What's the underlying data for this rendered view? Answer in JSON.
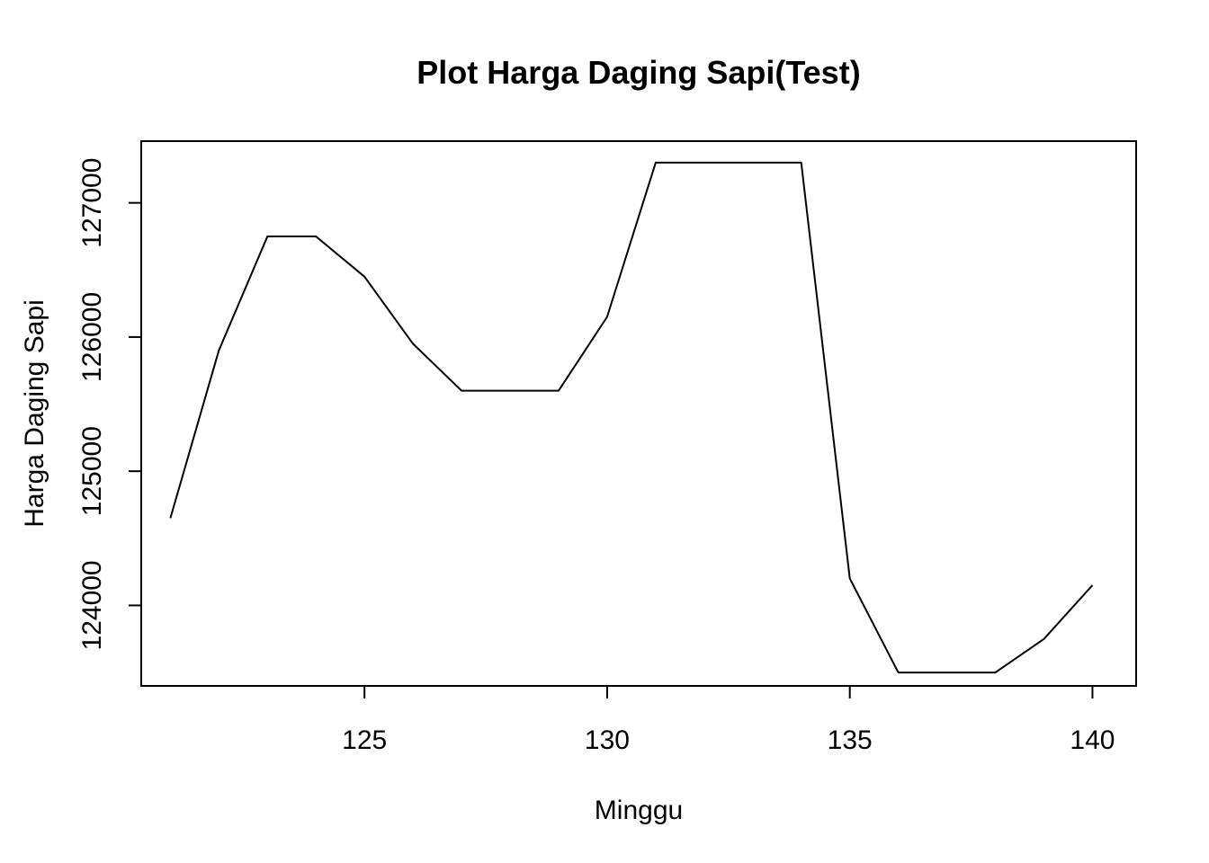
{
  "chart_data": {
    "type": "line",
    "title": "Plot Harga Daging Sapi(Test)",
    "xlabel": "Minggu",
    "ylabel": "Harga Daging Sapi",
    "xlim": [
      120.4,
      140.9
    ],
    "ylim": [
      123400,
      127460
    ],
    "x_ticks": [
      125,
      130,
      135,
      140
    ],
    "y_ticks": [
      124000,
      125000,
      126000,
      127000
    ],
    "grid": false,
    "legend": "none",
    "line_color": "#000000",
    "series": [
      {
        "x": [
          121,
          122,
          123,
          124,
          125,
          126,
          127,
          128,
          129,
          130,
          131,
          132,
          133,
          134,
          135,
          136,
          137,
          138,
          139,
          140
        ],
        "values": [
          124650,
          125900,
          126750,
          126750,
          126450,
          125950,
          125600,
          125600,
          125600,
          126150,
          127300,
          127300,
          127300,
          127300,
          124200,
          123500,
          123500,
          123500,
          123750,
          124150
        ]
      }
    ]
  }
}
